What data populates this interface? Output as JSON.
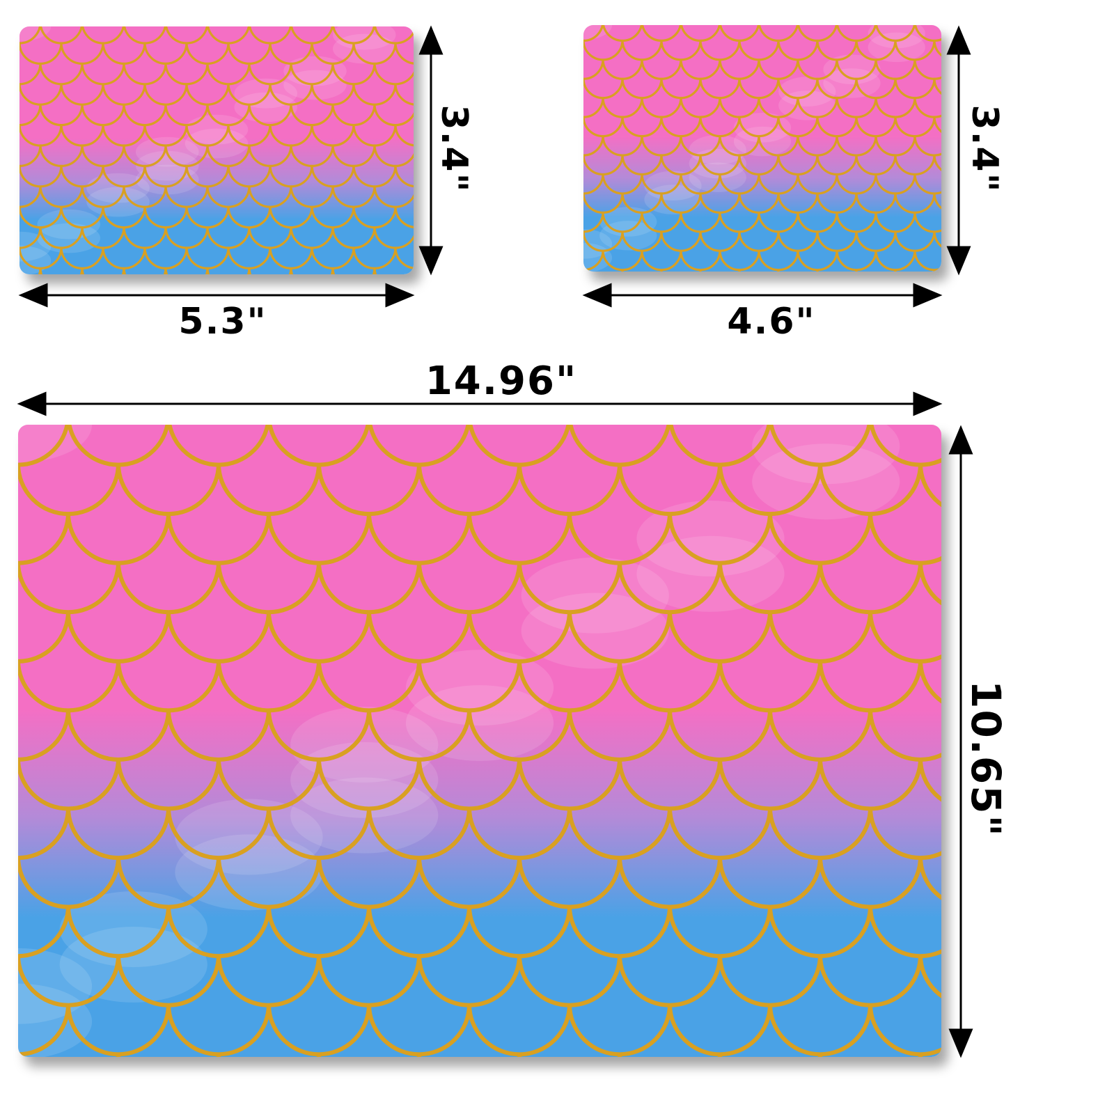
{
  "product": {
    "pattern": "mermaid-scales",
    "colors": {
      "pink": "#f46fc4",
      "violet": "#b48ad8",
      "blue": "#4aa2e6",
      "gold": "#d9a021"
    }
  },
  "mats": [
    {
      "name": "small-mat-left",
      "width_label": "5.3\"",
      "height_label": "3.4\""
    },
    {
      "name": "small-mat-right",
      "width_label": "4.6\"",
      "height_label": "3.4\""
    },
    {
      "name": "large-mat",
      "width_label": "14.96\"",
      "height_label": "10.65\""
    }
  ]
}
